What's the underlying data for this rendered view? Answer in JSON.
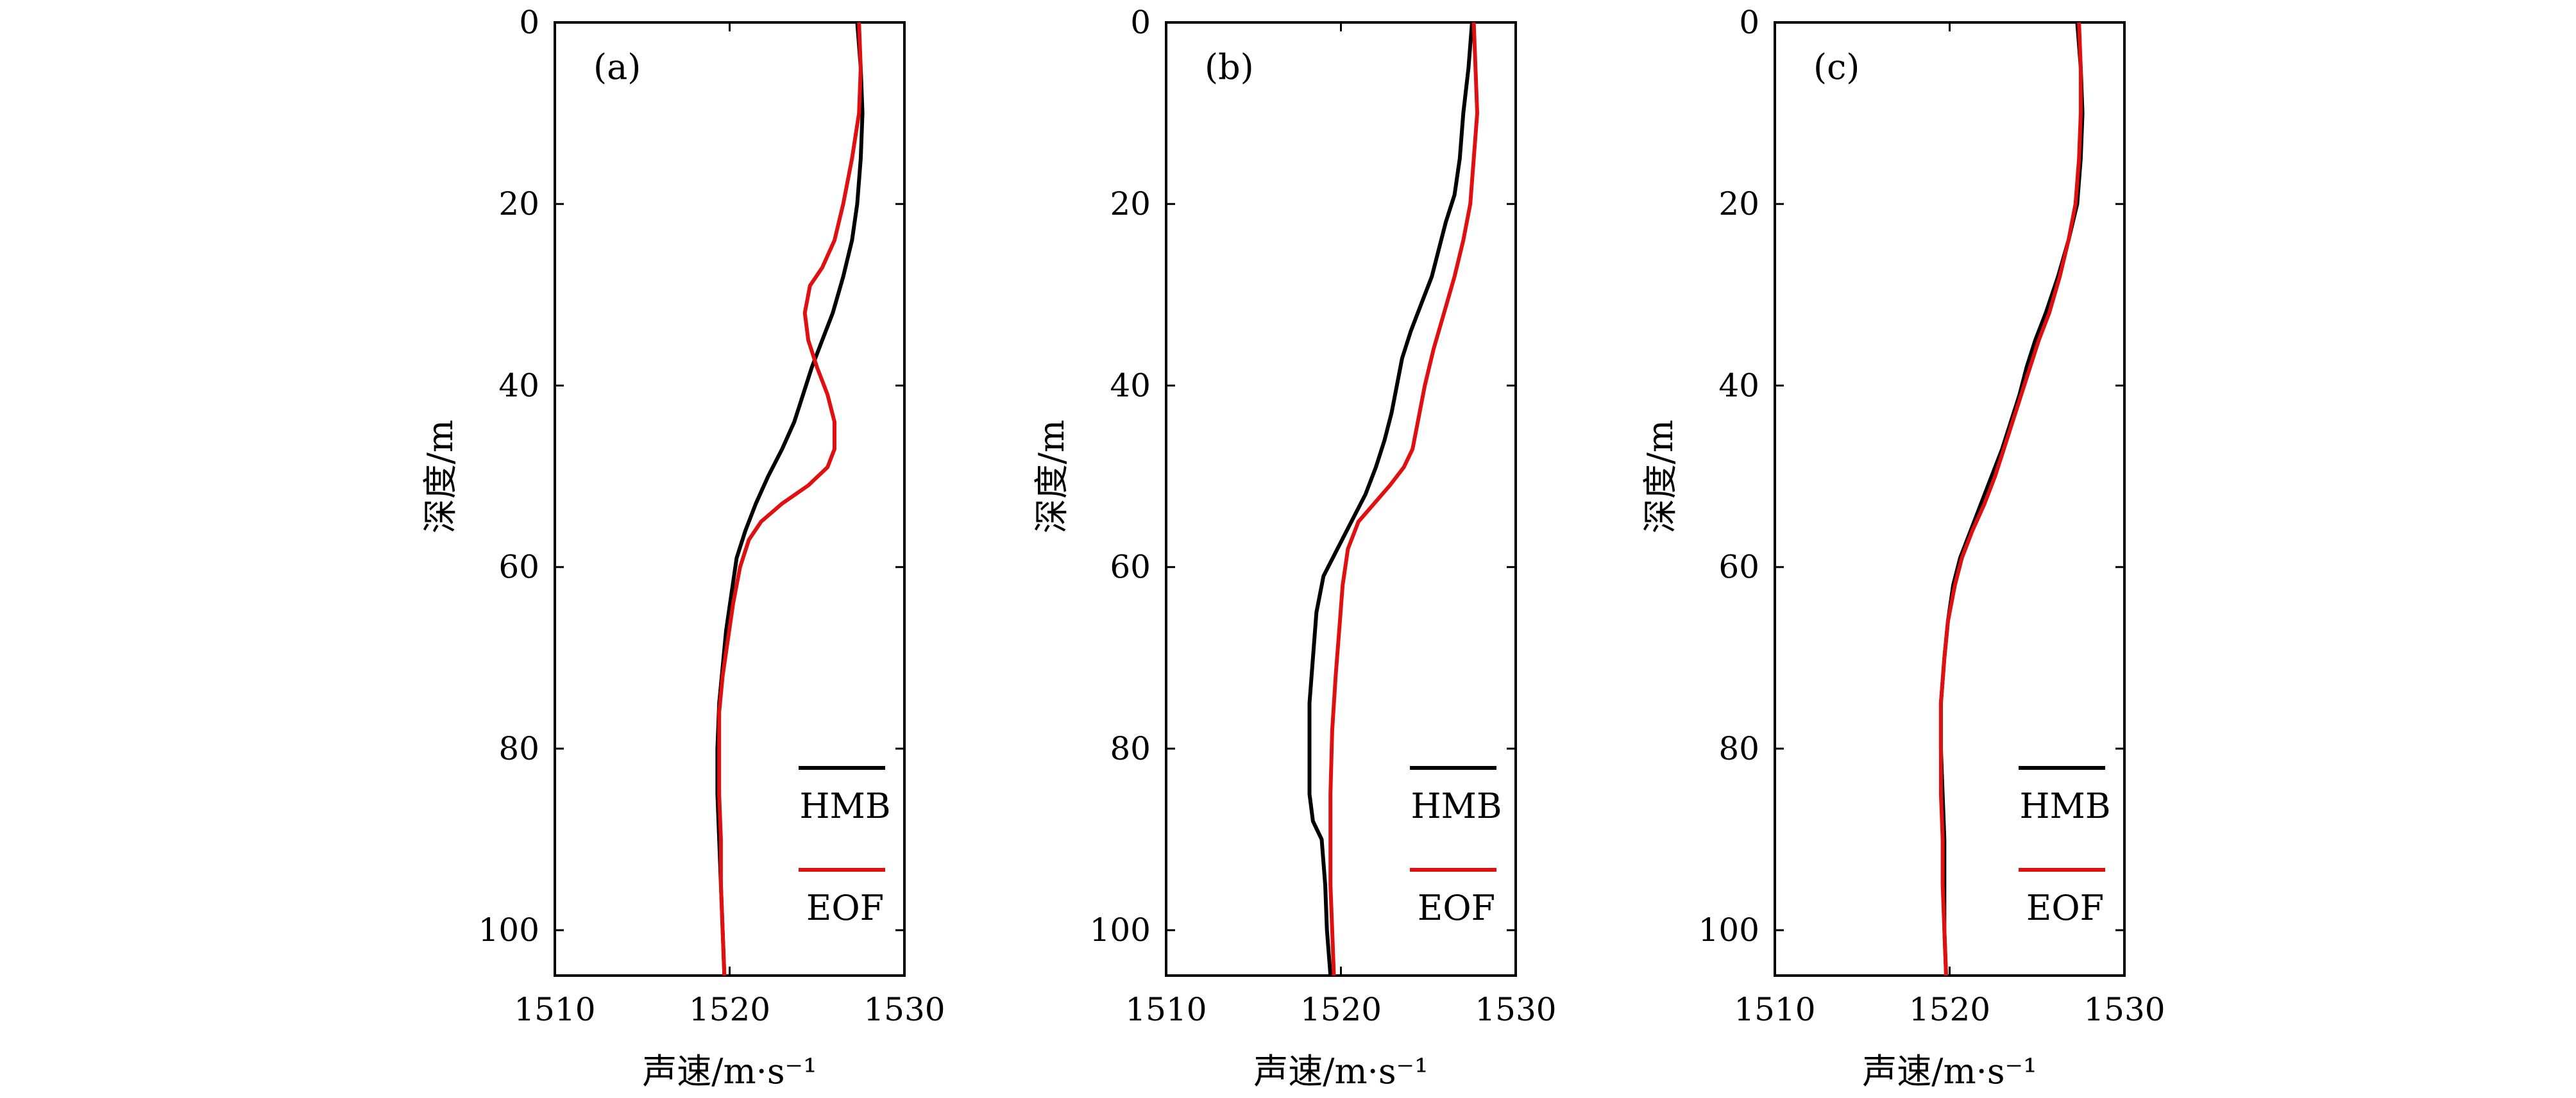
{
  "chart_data": [
    {
      "type": "line",
      "panel_label": "(a)",
      "xlabel": "声速/m·s⁻¹",
      "ylabel": "深度/m",
      "xlim": [
        1510,
        1530
      ],
      "ylim": [
        0,
        105
      ],
      "y_inverted": true,
      "x_ticks": [
        "1510",
        "1520",
        "1530"
      ],
      "y_ticks": [
        "0",
        "20",
        "40",
        "60",
        "80",
        "100"
      ],
      "legend_position": "lower-right",
      "series": [
        {
          "name": "HMB",
          "color": "#000000",
          "points": [
            [
              1527.3,
              0
            ],
            [
              1527.5,
              5
            ],
            [
              1527.6,
              10
            ],
            [
              1527.5,
              15
            ],
            [
              1527.3,
              20
            ],
            [
              1527.0,
              24
            ],
            [
              1526.5,
              28
            ],
            [
              1525.9,
              32
            ],
            [
              1525.3,
              35
            ],
            [
              1524.7,
              38
            ],
            [
              1524.2,
              41
            ],
            [
              1523.7,
              44
            ],
            [
              1523.0,
              47
            ],
            [
              1522.2,
              50
            ],
            [
              1521.5,
              53
            ],
            [
              1520.9,
              56
            ],
            [
              1520.4,
              59
            ],
            [
              1520.1,
              63
            ],
            [
              1519.8,
              67
            ],
            [
              1519.6,
              71
            ],
            [
              1519.4,
              75
            ],
            [
              1519.3,
              80
            ],
            [
              1519.3,
              85
            ],
            [
              1519.4,
              90
            ],
            [
              1519.5,
              95
            ],
            [
              1519.6,
              100
            ],
            [
              1519.7,
              105
            ]
          ]
        },
        {
          "name": "EOF",
          "color": "#e01010",
          "points": [
            [
              1527.4,
              0
            ],
            [
              1527.5,
              5
            ],
            [
              1527.4,
              10
            ],
            [
              1527.0,
              15
            ],
            [
              1526.5,
              20
            ],
            [
              1526.0,
              24
            ],
            [
              1525.3,
              27
            ],
            [
              1524.6,
              29
            ],
            [
              1524.3,
              32
            ],
            [
              1524.5,
              35
            ],
            [
              1525.0,
              38
            ],
            [
              1525.6,
              41
            ],
            [
              1526.0,
              44
            ],
            [
              1526.0,
              47
            ],
            [
              1525.6,
              49
            ],
            [
              1524.5,
              51
            ],
            [
              1523.0,
              53
            ],
            [
              1521.8,
              55
            ],
            [
              1521.1,
              57
            ],
            [
              1520.6,
              60
            ],
            [
              1520.2,
              64
            ],
            [
              1519.9,
              68
            ],
            [
              1519.6,
              72
            ],
            [
              1519.4,
              76
            ],
            [
              1519.4,
              80
            ],
            [
              1519.4,
              85
            ],
            [
              1519.5,
              90
            ],
            [
              1519.5,
              95
            ],
            [
              1519.6,
              100
            ],
            [
              1519.7,
              105
            ]
          ]
        }
      ]
    },
    {
      "type": "line",
      "panel_label": "(b)",
      "xlabel": "声速/m·s⁻¹",
      "ylabel": "深度/m",
      "xlim": [
        1510,
        1530
      ],
      "ylim": [
        0,
        105
      ],
      "y_inverted": true,
      "x_ticks": [
        "1510",
        "1520",
        "1530"
      ],
      "y_ticks": [
        "0",
        "20",
        "40",
        "60",
        "80",
        "100"
      ],
      "legend_position": "lower-right",
      "series": [
        {
          "name": "HMB",
          "color": "#000000",
          "points": [
            [
              1527.5,
              0
            ],
            [
              1527.3,
              5
            ],
            [
              1527.0,
              10
            ],
            [
              1526.8,
              15
            ],
            [
              1526.5,
              19
            ],
            [
              1526.0,
              22
            ],
            [
              1525.6,
              25
            ],
            [
              1525.2,
              28
            ],
            [
              1524.6,
              31
            ],
            [
              1524.0,
              34
            ],
            [
              1523.5,
              37
            ],
            [
              1523.2,
              40
            ],
            [
              1522.9,
              43
            ],
            [
              1522.5,
              46
            ],
            [
              1522.0,
              49
            ],
            [
              1521.4,
              52
            ],
            [
              1520.6,
              55
            ],
            [
              1519.8,
              58
            ],
            [
              1519.0,
              61
            ],
            [
              1518.6,
              65
            ],
            [
              1518.4,
              70
            ],
            [
              1518.2,
              75
            ],
            [
              1518.2,
              80
            ],
            [
              1518.2,
              85
            ],
            [
              1518.4,
              88
            ],
            [
              1518.9,
              90
            ],
            [
              1519.1,
              95
            ],
            [
              1519.2,
              100
            ],
            [
              1519.4,
              105
            ]
          ]
        },
        {
          "name": "EOF",
          "color": "#e01010",
          "points": [
            [
              1527.6,
              0
            ],
            [
              1527.7,
              5
            ],
            [
              1527.8,
              10
            ],
            [
              1527.6,
              15
            ],
            [
              1527.4,
              20
            ],
            [
              1527.0,
              24
            ],
            [
              1526.5,
              28
            ],
            [
              1525.9,
              32
            ],
            [
              1525.3,
              36
            ],
            [
              1524.8,
              40
            ],
            [
              1524.4,
              44
            ],
            [
              1524.1,
              47
            ],
            [
              1523.6,
              49
            ],
            [
              1522.8,
              51
            ],
            [
              1521.9,
              53
            ],
            [
              1521.0,
              55
            ],
            [
              1520.4,
              58
            ],
            [
              1520.1,
              62
            ],
            [
              1519.9,
              67
            ],
            [
              1519.7,
              72
            ],
            [
              1519.5,
              78
            ],
            [
              1519.4,
              85
            ],
            [
              1519.4,
              90
            ],
            [
              1519.4,
              95
            ],
            [
              1519.5,
              100
            ],
            [
              1519.6,
              105
            ]
          ]
        }
      ]
    },
    {
      "type": "line",
      "panel_label": "(c)",
      "xlabel": "声速/m·s⁻¹",
      "ylabel": "深度/m",
      "xlim": [
        1510,
        1530
      ],
      "ylim": [
        0,
        105
      ],
      "y_inverted": true,
      "x_ticks": [
        "1510",
        "1520",
        "1530"
      ],
      "y_ticks": [
        "0",
        "20",
        "40",
        "60",
        "80",
        "100"
      ],
      "legend_position": "lower-right",
      "series": [
        {
          "name": "HMB",
          "color": "#000000",
          "points": [
            [
              1527.3,
              0
            ],
            [
              1527.5,
              5
            ],
            [
              1527.6,
              10
            ],
            [
              1527.5,
              15
            ],
            [
              1527.3,
              20
            ],
            [
              1526.8,
              24
            ],
            [
              1526.2,
              28
            ],
            [
              1525.5,
              32
            ],
            [
              1524.9,
              35
            ],
            [
              1524.4,
              38
            ],
            [
              1524.0,
              41
            ],
            [
              1523.5,
              44
            ],
            [
              1523.0,
              47
            ],
            [
              1522.4,
              50
            ],
            [
              1521.8,
              53
            ],
            [
              1521.2,
              56
            ],
            [
              1520.6,
              59
            ],
            [
              1520.2,
              62
            ],
            [
              1519.9,
              66
            ],
            [
              1519.7,
              70
            ],
            [
              1519.5,
              75
            ],
            [
              1519.5,
              80
            ],
            [
              1519.6,
              85
            ],
            [
              1519.7,
              90
            ],
            [
              1519.7,
              95
            ],
            [
              1519.7,
              100
            ],
            [
              1519.8,
              105
            ]
          ]
        },
        {
          "name": "EOF",
          "color": "#e01010",
          "points": [
            [
              1527.4,
              0
            ],
            [
              1527.5,
              5
            ],
            [
              1527.5,
              10
            ],
            [
              1527.4,
              15
            ],
            [
              1527.2,
              20
            ],
            [
              1526.8,
              24
            ],
            [
              1526.3,
              28
            ],
            [
              1525.7,
              32
            ],
            [
              1525.1,
              35
            ],
            [
              1524.6,
              38
            ],
            [
              1524.1,
              41
            ],
            [
              1523.6,
              44
            ],
            [
              1523.1,
              47
            ],
            [
              1522.6,
              50
            ],
            [
              1522.0,
              53
            ],
            [
              1521.3,
              56
            ],
            [
              1520.7,
              59
            ],
            [
              1520.3,
              62
            ],
            [
              1519.9,
              66
            ],
            [
              1519.7,
              70
            ],
            [
              1519.5,
              75
            ],
            [
              1519.5,
              80
            ],
            [
              1519.5,
              85
            ],
            [
              1519.6,
              90
            ],
            [
              1519.6,
              95
            ],
            [
              1519.7,
              100
            ],
            [
              1519.8,
              105
            ]
          ]
        }
      ]
    }
  ]
}
